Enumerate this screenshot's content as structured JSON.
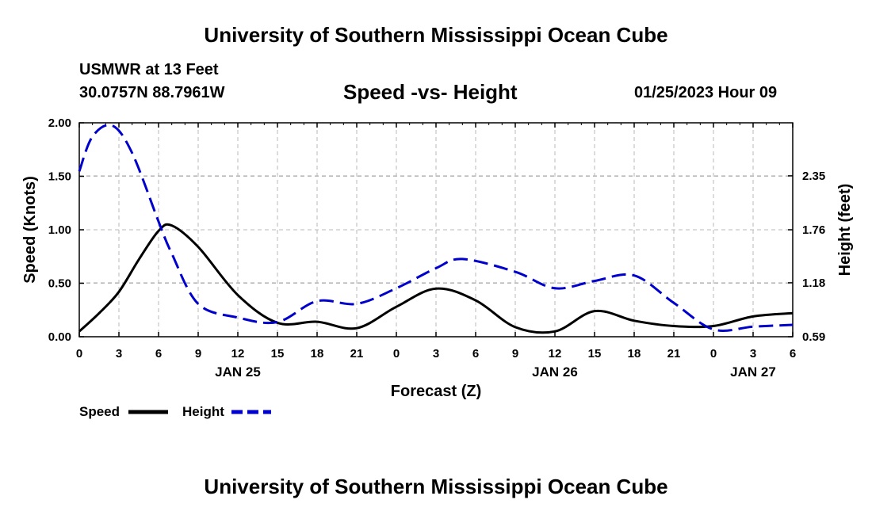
{
  "page": {
    "title_top": "University of Southern Mississippi Ocean Cube",
    "title_bottom": "University of Southern Mississippi Ocean Cube",
    "station": "USMWR at 13 Feet",
    "coords": "30.0757N  88.7961W",
    "datetime": "01/25/2023 Hour 09"
  },
  "chart_data": {
    "type": "line",
    "title": "Speed -vs- Height",
    "xlabel": "Forecast (Z)",
    "ylabel_left": "Speed (Knots)",
    "ylabel_right": "Height (feet)",
    "x_range_hours": [
      0,
      54
    ],
    "x_tick_hours": [
      0,
      3,
      6,
      9,
      12,
      15,
      18,
      21,
      24,
      27,
      30,
      33,
      36,
      39,
      42,
      45,
      48,
      51,
      54
    ],
    "x_tick_labels": [
      "0",
      "3",
      "6",
      "9",
      "12",
      "15",
      "18",
      "21",
      "0",
      "3",
      "6",
      "9",
      "12",
      "15",
      "18",
      "21",
      "0",
      "3",
      "6"
    ],
    "day_labels": [
      {
        "hour": 12,
        "label": "JAN 25"
      },
      {
        "hour": 36,
        "label": "JAN 26"
      },
      {
        "hour": 51,
        "label": "JAN 27"
      }
    ],
    "ylim_left": [
      0,
      2
    ],
    "y_ticks_left": [
      0,
      0.5,
      1.0,
      1.5,
      2.0
    ],
    "y_tick_labels_left": [
      "0.00",
      "0.50",
      "1.00",
      "1.50",
      "2.00"
    ],
    "ylim_right": [
      0.59,
      2.93
    ],
    "y_ticks_right": [
      0.59,
      1.18,
      1.76,
      2.35
    ],
    "y_tick_labels_right": [
      "0.59",
      "1.18",
      "1.76",
      "2.35"
    ],
    "grid": true,
    "series": [
      {
        "name": "Speed",
        "axis": "left",
        "color": "#000000",
        "dash": "solid",
        "x": [
          0,
          1.5,
          3,
          4.5,
          6,
          7,
          9,
          12,
          15,
          18,
          21,
          24,
          27,
          30,
          33,
          36,
          39,
          42,
          45,
          48,
          51,
          54
        ],
        "values": [
          0.05,
          0.22,
          0.42,
          0.72,
          0.99,
          1.04,
          0.84,
          0.39,
          0.13,
          0.14,
          0.08,
          0.28,
          0.45,
          0.34,
          0.09,
          0.05,
          0.24,
          0.15,
          0.1,
          0.1,
          0.19,
          0.22
        ]
      },
      {
        "name": "Height",
        "axis": "right",
        "color": "#0000cc",
        "dash": "dashed",
        "x": [
          0,
          1,
          2.5,
          4,
          6,
          7,
          9,
          12,
          15,
          18,
          21,
          24,
          27,
          29,
          33,
          36,
          39,
          42,
          45,
          48,
          51,
          54
        ],
        "values": [
          2.4,
          2.78,
          2.9,
          2.6,
          1.85,
          1.5,
          0.95,
          0.8,
          0.75,
          0.98,
          0.95,
          1.12,
          1.34,
          1.44,
          1.3,
          1.12,
          1.2,
          1.26,
          0.96,
          0.67,
          0.7,
          0.72
        ]
      }
    ],
    "legend": {
      "position": "bottom-left",
      "entries": [
        {
          "label": "Speed",
          "color": "#000000",
          "dash": "solid"
        },
        {
          "label": "Height",
          "color": "#0000cc",
          "dash": "dashed"
        }
      ]
    }
  }
}
